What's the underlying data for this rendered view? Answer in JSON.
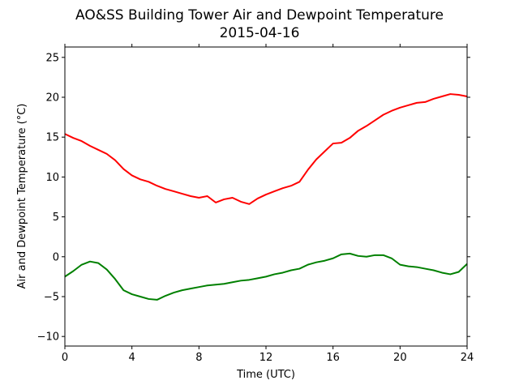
{
  "chart_data": {
    "type": "line",
    "title": "AO&SS Building Tower Air and Dewpoint Temperature",
    "subtitle": "2015-04-16",
    "xlabel": "Time (UTC)",
    "ylabel": "Air and Dewpoint Temperature (°C)",
    "xlim": [
      0,
      24
    ],
    "ylim": [
      -11.2,
      26.3
    ],
    "x_ticks": [
      0,
      4,
      8,
      12,
      16,
      20,
      24
    ],
    "y_ticks": [
      -10,
      -5,
      0,
      5,
      10,
      15,
      20,
      25
    ],
    "grid": false,
    "legend": "none",
    "series": [
      {
        "color": "#ff0000",
        "x": [
          0,
          0.5,
          1,
          1.5,
          2,
          2.5,
          3,
          3.5,
          4,
          4.5,
          5,
          5.5,
          6,
          6.5,
          7,
          7.5,
          8,
          8.5,
          9,
          9.5,
          10,
          10.5,
          11,
          11.5,
          12,
          12.5,
          13,
          13.5,
          14,
          14.5,
          15,
          15.5,
          16,
          16.5,
          17,
          17.5,
          18,
          18.5,
          19,
          19.5,
          20,
          20.5,
          21,
          21.5,
          22,
          22.5,
          23,
          23.5,
          24
        ],
        "y": [
          15.4,
          14.9,
          14.5,
          13.9,
          13.4,
          12.9,
          12.1,
          11.0,
          10.2,
          9.7,
          9.4,
          8.9,
          8.5,
          8.2,
          7.9,
          7.6,
          7.4,
          7.6,
          6.8,
          7.2,
          7.4,
          6.9,
          6.6,
          7.3,
          7.8,
          8.2,
          8.6,
          8.9,
          9.4,
          10.9,
          12.2,
          13.2,
          14.2,
          14.3,
          14.9,
          15.8,
          16.4,
          17.1,
          17.8,
          18.3,
          18.7,
          19.0,
          19.3,
          19.4,
          19.8,
          20.1,
          20.4,
          20.3,
          20.1
        ]
      },
      {
        "color": "#008000",
        "x": [
          0,
          0.5,
          1,
          1.5,
          2,
          2.5,
          3,
          3.5,
          4,
          4.5,
          5,
          5.5,
          6,
          6.5,
          7,
          7.5,
          8,
          8.5,
          9,
          9.5,
          10,
          10.5,
          11,
          11.5,
          12,
          12.5,
          13,
          13.5,
          14,
          14.5,
          15,
          15.5,
          16,
          16.5,
          17,
          17.5,
          18,
          18.5,
          19,
          19.5,
          20,
          20.5,
          21,
          21.5,
          22,
          22.5,
          23,
          23.5,
          24
        ],
        "y": [
          -2.5,
          -1.8,
          -1.0,
          -0.6,
          -0.8,
          -1.6,
          -2.8,
          -4.2,
          -4.7,
          -5.0,
          -5.3,
          -5.4,
          -4.9,
          -4.5,
          -4.2,
          -4.0,
          -3.8,
          -3.6,
          -3.5,
          -3.4,
          -3.2,
          -3.0,
          -2.9,
          -2.7,
          -2.5,
          -2.2,
          -2.0,
          -1.7,
          -1.5,
          -1.0,
          -0.7,
          -0.5,
          -0.2,
          0.3,
          0.4,
          0.1,
          0.0,
          0.2,
          0.2,
          -0.2,
          -1.0,
          -1.2,
          -1.3,
          -1.5,
          -1.7,
          -2.0,
          -2.2,
          -1.9,
          -0.9
        ]
      }
    ]
  }
}
